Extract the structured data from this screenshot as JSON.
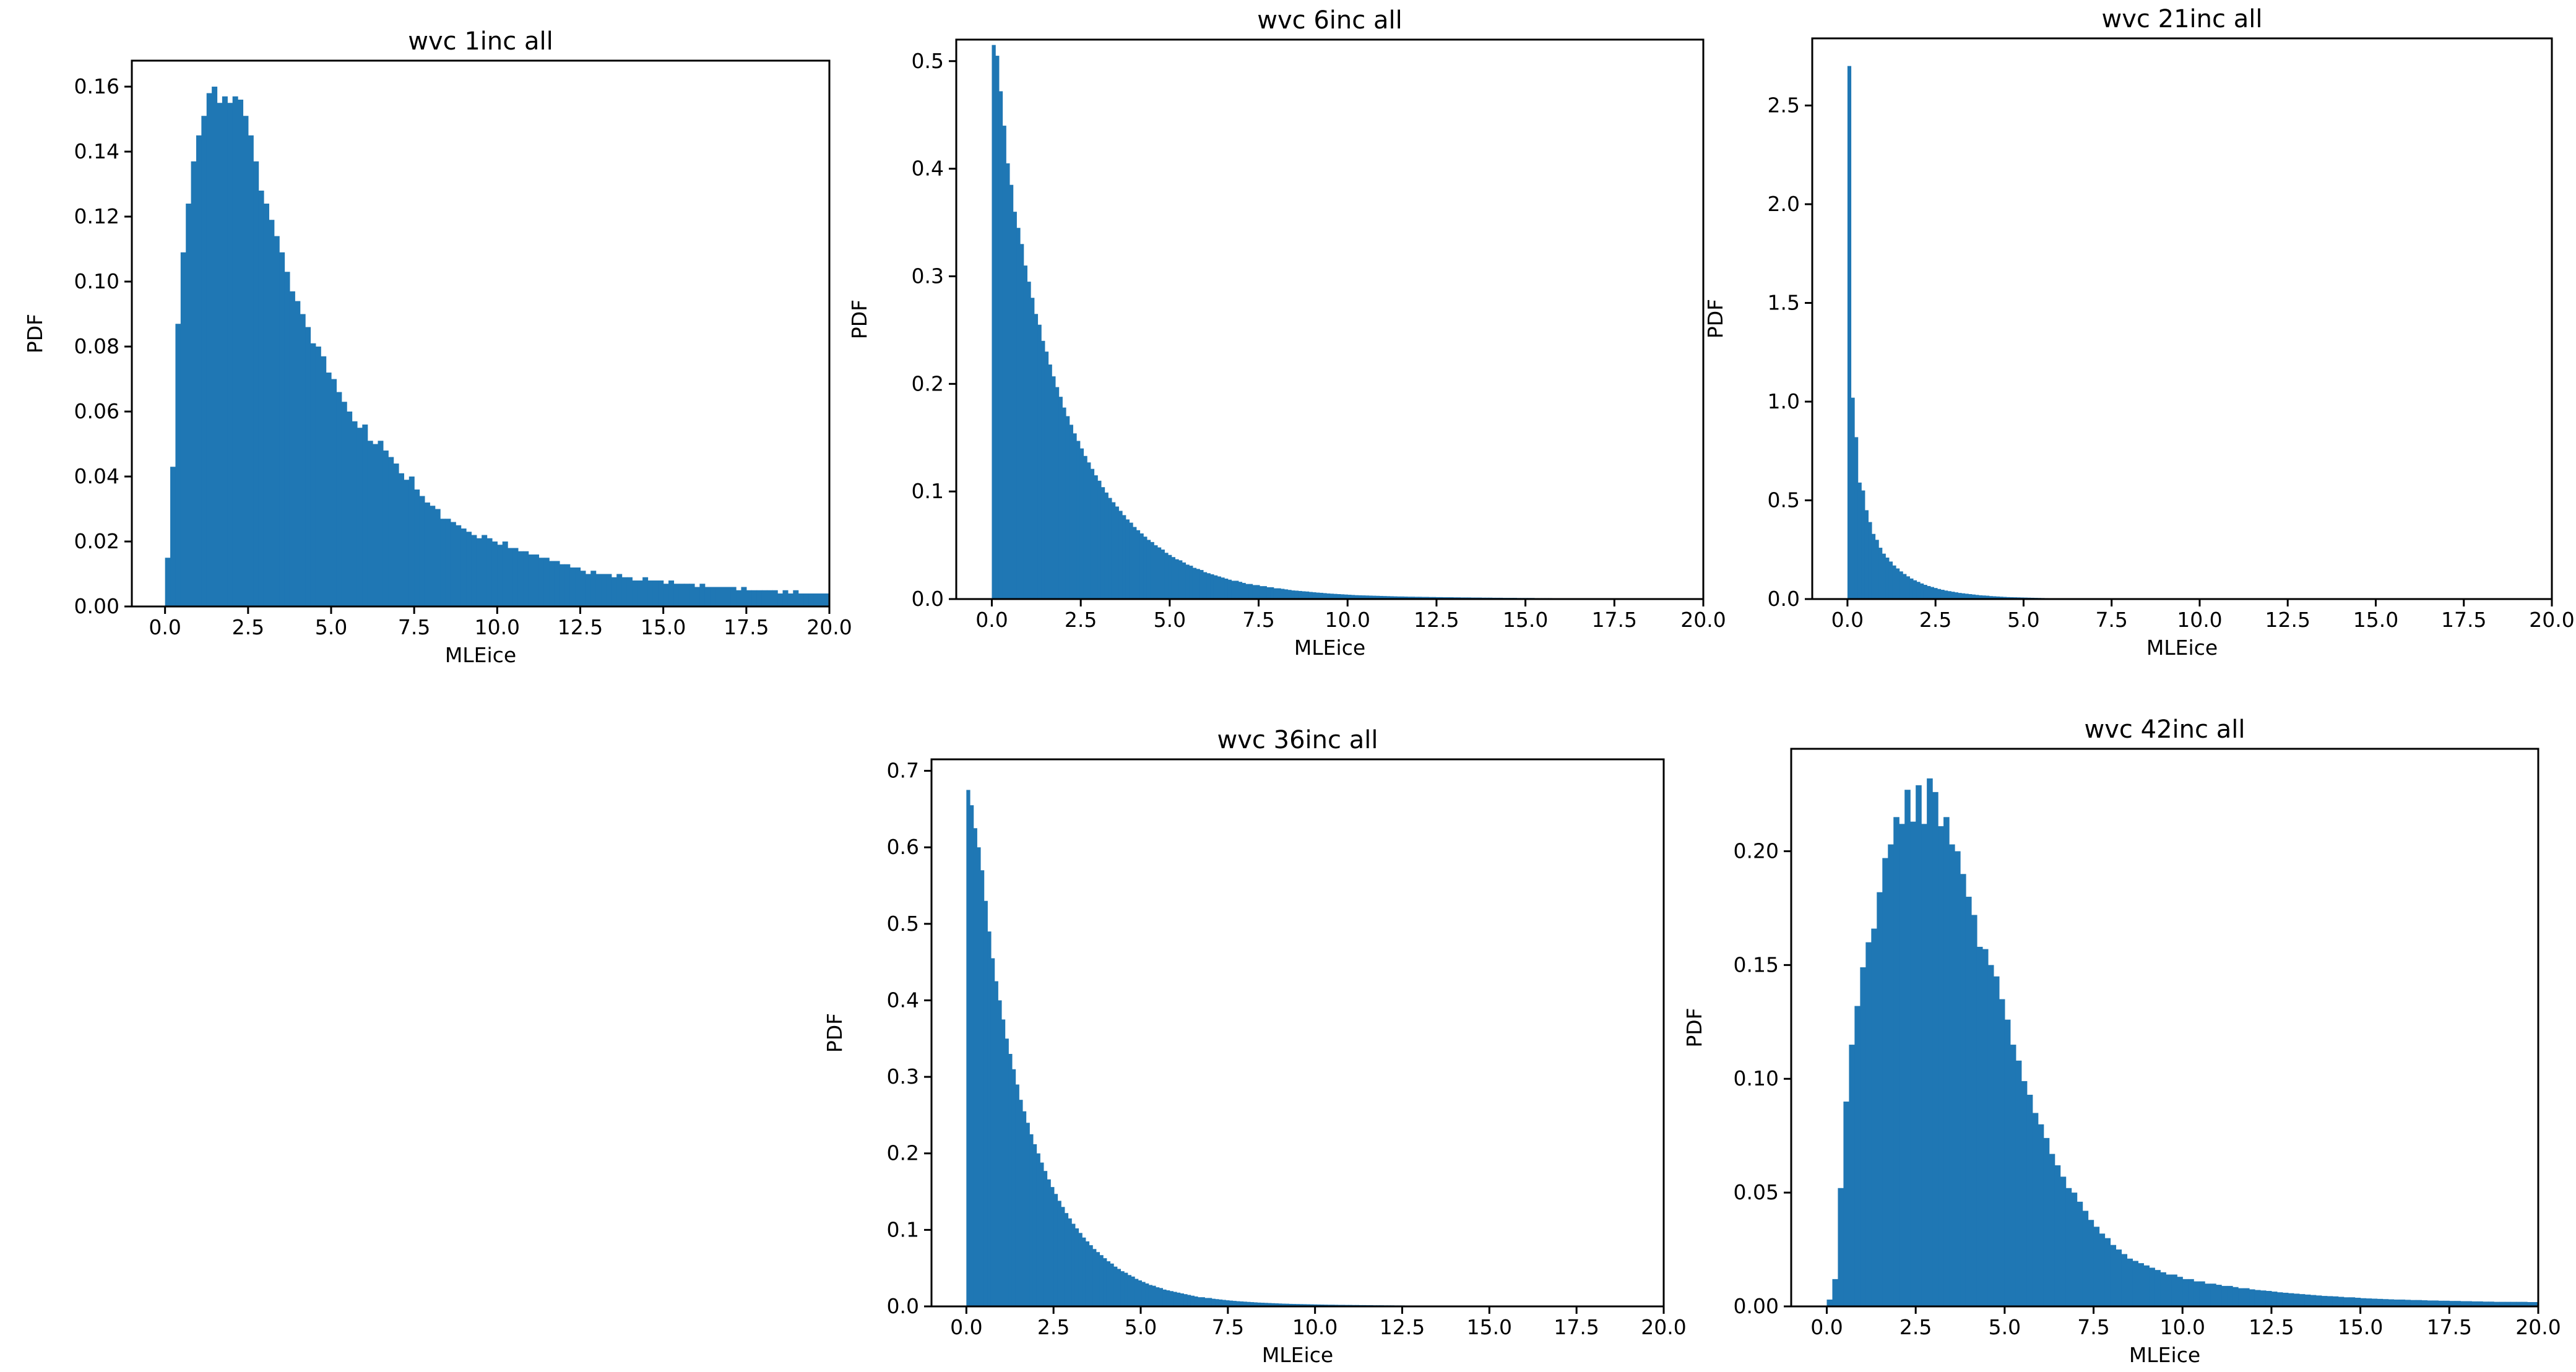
{
  "figure": {
    "bar_color": "#1f77b4",
    "background": "#ffffff"
  },
  "chart_data": [
    {
      "type": "bar",
      "title": "wvc 1inc all",
      "xlabel": "MLEice",
      "ylabel": "PDF",
      "xlim": [
        -1,
        20
      ],
      "ylim": [
        0,
        0.168
      ],
      "xticks": [
        "0.0",
        "2.5",
        "5.0",
        "7.5",
        "10.0",
        "12.5",
        "15.0",
        "17.5",
        "20.0"
      ],
      "yticks": [
        "0.00",
        "0.02",
        "0.04",
        "0.06",
        "0.08",
        "0.10",
        "0.12",
        "0.14",
        "0.16"
      ],
      "bin_range": [
        0,
        20
      ],
      "values": [
        0.015,
        0.043,
        0.087,
        0.109,
        0.124,
        0.137,
        0.145,
        0.151,
        0.158,
        0.16,
        0.155,
        0.157,
        0.155,
        0.157,
        0.156,
        0.151,
        0.145,
        0.137,
        0.128,
        0.124,
        0.119,
        0.114,
        0.109,
        0.103,
        0.097,
        0.094,
        0.09,
        0.086,
        0.081,
        0.08,
        0.077,
        0.072,
        0.07,
        0.066,
        0.063,
        0.06,
        0.057,
        0.055,
        0.056,
        0.051,
        0.05,
        0.051,
        0.048,
        0.046,
        0.044,
        0.041,
        0.039,
        0.04,
        0.036,
        0.034,
        0.032,
        0.031,
        0.03,
        0.027,
        0.027,
        0.026,
        0.025,
        0.024,
        0.023,
        0.022,
        0.021,
        0.022,
        0.021,
        0.02,
        0.019,
        0.02,
        0.018,
        0.018,
        0.017,
        0.017,
        0.016,
        0.016,
        0.015,
        0.015,
        0.014,
        0.014,
        0.013,
        0.013,
        0.012,
        0.012,
        0.011,
        0.01,
        0.011,
        0.01,
        0.01,
        0.01,
        0.009,
        0.01,
        0.009,
        0.009,
        0.008,
        0.008,
        0.009,
        0.008,
        0.008,
        0.008,
        0.007,
        0.008,
        0.007,
        0.007,
        0.007,
        0.007,
        0.006,
        0.007,
        0.006,
        0.006,
        0.006,
        0.006,
        0.006,
        0.006,
        0.005,
        0.006,
        0.005,
        0.005,
        0.005,
        0.005,
        0.005,
        0.005,
        0.004,
        0.005,
        0.004,
        0.005,
        0.004,
        0.004,
        0.004,
        0.004,
        0.004,
        0.004
      ]
    },
    {
      "type": "bar",
      "title": "wvc 6inc all",
      "xlabel": "MLEice",
      "ylabel": "PDF",
      "xlim": [
        -1,
        20
      ],
      "ylim": [
        0,
        0.52
      ],
      "xticks": [
        "0.0",
        "2.5",
        "5.0",
        "7.5",
        "10.0",
        "12.5",
        "15.0",
        "17.5",
        "20.0"
      ],
      "yticks": [
        "0.0",
        "0.1",
        "0.2",
        "0.3",
        "0.4",
        "0.5"
      ],
      "bin_range": [
        0,
        20
      ],
      "values": [
        0.515,
        0.505,
        0.472,
        0.44,
        0.405,
        0.385,
        0.36,
        0.345,
        0.33,
        0.31,
        0.295,
        0.28,
        0.265,
        0.255,
        0.24,
        0.23,
        0.218,
        0.207,
        0.197,
        0.188,
        0.178,
        0.17,
        0.162,
        0.154,
        0.147,
        0.14,
        0.133,
        0.127,
        0.121,
        0.115,
        0.11,
        0.104,
        0.099,
        0.094,
        0.09,
        0.086,
        0.082,
        0.078,
        0.074,
        0.071,
        0.067,
        0.064,
        0.061,
        0.058,
        0.055,
        0.053,
        0.05,
        0.048,
        0.046,
        0.043,
        0.041,
        0.039,
        0.037,
        0.036,
        0.034,
        0.032,
        0.031,
        0.029,
        0.028,
        0.027,
        0.025,
        0.024,
        0.023,
        0.022,
        0.021,
        0.02,
        0.019,
        0.018,
        0.017,
        0.017,
        0.016,
        0.015,
        0.014,
        0.014,
        0.013,
        0.013,
        0.012,
        0.012,
        0.011,
        0.011,
        0.01,
        0.01,
        0.0095,
        0.009,
        0.0085,
        0.008,
        0.0078,
        0.0075,
        0.0072,
        0.007,
        0.0066,
        0.0063,
        0.006,
        0.0058,
        0.0055,
        0.0052,
        0.005,
        0.0048,
        0.0046,
        0.0044,
        0.0042,
        0.004,
        0.0038,
        0.0036,
        0.0035,
        0.0034,
        0.0033,
        0.0032,
        0.0031,
        0.003,
        0.0029,
        0.0028,
        0.0027,
        0.0026,
        0.0025,
        0.0024,
        0.0024,
        0.0023,
        0.0022,
        0.0022,
        0.0021,
        0.0021,
        0.002,
        0.002,
        0.0019,
        0.0019,
        0.0018,
        0.0018,
        0.0017,
        0.0017,
        0.0017,
        0.0016,
        0.0016,
        0.0015,
        0.0015,
        0.0015,
        0.0014,
        0.0014,
        0.0014,
        0.0013,
        0.0013,
        0.0013,
        0.0012,
        0.0012,
        0.0012,
        0.0011,
        0.0011,
        0.0011,
        0.0011,
        0.001,
        0.001,
        0.001,
        0.001,
        0.001,
        0.0009,
        0.0009,
        0.0009,
        0.0009,
        0.0009,
        0.0008,
        0.0008,
        0.0008,
        0.0008,
        0.0008,
        0.0008,
        0.0007,
        0.0007,
        0.0007,
        0.0007,
        0.0007,
        0.0007,
        0.0006,
        0.0006,
        0.0006,
        0.0006,
        0.0006,
        0.0006,
        0.0006,
        0.0005,
        0.0005,
        0.0005,
        0.0005,
        0.0005,
        0.0005,
        0.0005,
        0.0005,
        0.0005,
        0.0004,
        0.0004,
        0.0004,
        0.0004,
        0.0004,
        0.0004,
        0.0004,
        0.0004,
        0.0004,
        0.0004,
        0.0004,
        0.0004,
        0.0004,
        0.0004,
        0.0004
      ]
    },
    {
      "type": "bar",
      "title": "wvc 21inc all",
      "xlabel": "MLEice",
      "ylabel": "PDF",
      "xlim": [
        -1,
        20
      ],
      "ylim": [
        0,
        2.84
      ],
      "xticks": [
        "0.0",
        "2.5",
        "5.0",
        "7.5",
        "10.0",
        "12.5",
        "15.0",
        "17.5",
        "20.0"
      ],
      "yticks": [
        "0.0",
        "0.5",
        "1.0",
        "1.5",
        "2.0",
        "2.5"
      ],
      "bin_range": [
        0,
        20
      ],
      "values": [
        2.7,
        1.02,
        0.82,
        0.59,
        0.55,
        0.45,
        0.39,
        0.33,
        0.3,
        0.26,
        0.23,
        0.21,
        0.19,
        0.17,
        0.155,
        0.14,
        0.127,
        0.115,
        0.104,
        0.095,
        0.087,
        0.079,
        0.072,
        0.066,
        0.061,
        0.056,
        0.051,
        0.047,
        0.043,
        0.04,
        0.037,
        0.034,
        0.031,
        0.029,
        0.027,
        0.025,
        0.023,
        0.021,
        0.019,
        0.018,
        0.017,
        0.015,
        0.014,
        0.013,
        0.012,
        0.011,
        0.01,
        0.0095,
        0.009,
        0.0085,
        0.008,
        0.0075,
        0.007,
        0.0065,
        0.006,
        0.0056,
        0.0052,
        0.0048,
        0.0045,
        0.0042,
        0.004,
        0.0037,
        0.0035,
        0.0033,
        0.0031,
        0.003,
        0.0028,
        0.0027,
        0.0026,
        0.0025,
        0.0024,
        0.0023,
        0.0022,
        0.0021,
        0.002,
        0.0019,
        0.0018,
        0.0018,
        0.0017,
        0.0017,
        0.0016,
        0.0016,
        0.0015,
        0.0015,
        0.0015,
        0.0014,
        0.0014,
        0.0014,
        0.0013,
        0.0013,
        0.0013,
        0.0012,
        0.0012,
        0.0012,
        0.0012,
        0.0011,
        0.0011,
        0.0011,
        0.0011,
        0.001,
        0.001,
        0.001,
        0.001,
        0.001,
        0.001,
        0.0009,
        0.0009,
        0.0009,
        0.0009,
        0.0009,
        0.0009,
        0.0009,
        0.0008,
        0.0008,
        0.0008,
        0.0008,
        0.0008,
        0.0008,
        0.0008,
        0.0008,
        0.0007,
        0.0007,
        0.0007,
        0.0007,
        0.0007,
        0.0007,
        0.0007,
        0.0007,
        0.0007,
        0.0006,
        0.0006,
        0.0006,
        0.0006,
        0.0006,
        0.0006,
        0.0006,
        0.0006,
        0.0006,
        0.0006,
        0.0006,
        0.0005,
        0.0005,
        0.0005,
        0.0005,
        0.0005,
        0.0005,
        0.0005,
        0.0005,
        0.0005,
        0.0005,
        0.0005,
        0.0005,
        0.0005,
        0.0005,
        0.0005,
        0.0005,
        0.0005,
        0.0005,
        0.0005,
        0.0005,
        0.0005,
        0.0005,
        0.0005,
        0.0005,
        0.0005,
        0.0005,
        0.0005,
        0.0005,
        0.0005,
        0.0005,
        0.0005,
        0.0005,
        0.0005,
        0.0005,
        0.0005,
        0.0005,
        0.0005,
        0.0005,
        0.0005,
        0.0005,
        0.0005,
        0.0005,
        0.0005,
        0.0005,
        0.0005,
        0.0005,
        0.0005,
        0.0005,
        0.0005,
        0.0005,
        0.0005,
        0.0005,
        0.0005,
        0.0005,
        0.0005,
        0.0005,
        0.0005,
        0.0005,
        0.0005,
        0.0005,
        0.0005,
        0.0005,
        0.0005,
        0.0005
      ]
    },
    {
      "type": "bar",
      "title": "wvc 36inc all",
      "xlabel": "MLEice",
      "ylabel": "PDF",
      "xlim": [
        -1,
        20
      ],
      "ylim": [
        0,
        0.715
      ],
      "xticks": [
        "0.0",
        "2.5",
        "5.0",
        "7.5",
        "10.0",
        "12.5",
        "15.0",
        "17.5",
        "20.0"
      ],
      "yticks": [
        "0.0",
        "0.1",
        "0.2",
        "0.3",
        "0.4",
        "0.5",
        "0.6",
        "0.7"
      ],
      "bin_range": [
        0,
        20
      ],
      "values": [
        0.675,
        0.655,
        0.625,
        0.6,
        0.57,
        0.53,
        0.49,
        0.455,
        0.425,
        0.4,
        0.375,
        0.35,
        0.33,
        0.31,
        0.29,
        0.27,
        0.255,
        0.24,
        0.225,
        0.212,
        0.2,
        0.188,
        0.177,
        0.166,
        0.156,
        0.147,
        0.138,
        0.13,
        0.122,
        0.115,
        0.108,
        0.102,
        0.096,
        0.09,
        0.085,
        0.08,
        0.075,
        0.071,
        0.067,
        0.063,
        0.059,
        0.056,
        0.052,
        0.049,
        0.046,
        0.044,
        0.041,
        0.039,
        0.036,
        0.034,
        0.032,
        0.03,
        0.028,
        0.027,
        0.025,
        0.024,
        0.022,
        0.021,
        0.02,
        0.019,
        0.018,
        0.017,
        0.016,
        0.015,
        0.014,
        0.013,
        0.012,
        0.012,
        0.011,
        0.011,
        0.01,
        0.0095,
        0.009,
        0.0085,
        0.008,
        0.0076,
        0.0072,
        0.0068,
        0.0065,
        0.0062,
        0.0059,
        0.0056,
        0.0053,
        0.005,
        0.0048,
        0.0046,
        0.0044,
        0.0042,
        0.004,
        0.0038,
        0.0036,
        0.0035,
        0.0033,
        0.0032,
        0.0031,
        0.003,
        0.0029,
        0.0028,
        0.0027,
        0.0026,
        0.0025,
        0.0024,
        0.0023,
        0.0022,
        0.0022,
        0.0021,
        0.002,
        0.002,
        0.0019,
        0.0019,
        0.0018,
        0.0018,
        0.0017,
        0.0017,
        0.0016,
        0.0016,
        0.0015,
        0.0015,
        0.0015,
        0.0014,
        0.0014,
        0.0014,
        0.0013,
        0.0013,
        0.0013,
        0.0012,
        0.0012,
        0.0012,
        0.0012,
        0.0011,
        0.0011,
        0.0011,
        0.0011,
        0.001,
        0.001,
        0.001,
        0.001,
        0.001,
        0.0009,
        0.0009,
        0.0009,
        0.0009,
        0.0009,
        0.0009,
        0.0008,
        0.0008,
        0.0008,
        0.0008,
        0.0008,
        0.0008,
        0.0008,
        0.0007,
        0.0007,
        0.0007,
        0.0007,
        0.0007,
        0.0007,
        0.0007,
        0.0007,
        0.0006,
        0.0006,
        0.0006,
        0.0006,
        0.0006,
        0.0006,
        0.0006,
        0.0006,
        0.0006,
        0.0006,
        0.0006,
        0.0005,
        0.0005,
        0.0005,
        0.0005,
        0.0005,
        0.0005,
        0.0005,
        0.0005,
        0.0005,
        0.0005,
        0.0005,
        0.0005,
        0.0005,
        0.0005,
        0.0005,
        0.0005,
        0.0005,
        0.0005,
        0.0005,
        0.0005,
        0.0005,
        0.0005,
        0.0005,
        0.0005,
        0.0005,
        0.0005,
        0.0005,
        0.0005,
        0.0005
      ]
    },
    {
      "type": "bar",
      "title": "wvc 42inc all",
      "xlabel": "MLEice",
      "ylabel": "PDF",
      "xlim": [
        -1,
        20
      ],
      "ylim": [
        0,
        0.245
      ],
      "xticks": [
        "0.0",
        "2.5",
        "5.0",
        "7.5",
        "10.0",
        "12.5",
        "15.0",
        "17.5",
        "20.0"
      ],
      "yticks": [
        "0.00",
        "0.05",
        "0.10",
        "0.15",
        "0.20"
      ],
      "bin_range": [
        0,
        20
      ],
      "values": [
        0.003,
        0.012,
        0.052,
        0.09,
        0.115,
        0.132,
        0.149,
        0.16,
        0.166,
        0.182,
        0.197,
        0.203,
        0.215,
        0.212,
        0.227,
        0.213,
        0.229,
        0.212,
        0.232,
        0.226,
        0.211,
        0.215,
        0.203,
        0.2,
        0.19,
        0.18,
        0.172,
        0.158,
        0.157,
        0.15,
        0.145,
        0.135,
        0.126,
        0.115,
        0.108,
        0.099,
        0.093,
        0.085,
        0.08,
        0.074,
        0.067,
        0.062,
        0.057,
        0.052,
        0.05,
        0.046,
        0.042,
        0.038,
        0.035,
        0.032,
        0.03,
        0.027,
        0.025,
        0.023,
        0.021,
        0.02,
        0.019,
        0.018,
        0.017,
        0.016,
        0.015,
        0.014,
        0.014,
        0.013,
        0.012,
        0.012,
        0.011,
        0.011,
        0.01,
        0.01,
        0.0095,
        0.009,
        0.009,
        0.0085,
        0.008,
        0.008,
        0.0075,
        0.0072,
        0.007,
        0.0068,
        0.0065,
        0.0062,
        0.006,
        0.0058,
        0.0056,
        0.0054,
        0.0052,
        0.005,
        0.0048,
        0.0046,
        0.0045,
        0.0044,
        0.0042,
        0.004,
        0.004,
        0.0038,
        0.0036,
        0.0035,
        0.0034,
        0.0033,
        0.0032,
        0.0031,
        0.003,
        0.003,
        0.0029,
        0.0028,
        0.0028,
        0.0027,
        0.0026,
        0.0026,
        0.0025,
        0.0025,
        0.0024,
        0.0024,
        0.0023,
        0.0023,
        0.0022,
        0.0022,
        0.0021,
        0.0021,
        0.002,
        0.002,
        0.002,
        0.002,
        0.002,
        0.002,
        0.0019,
        0.0019
      ]
    }
  ]
}
